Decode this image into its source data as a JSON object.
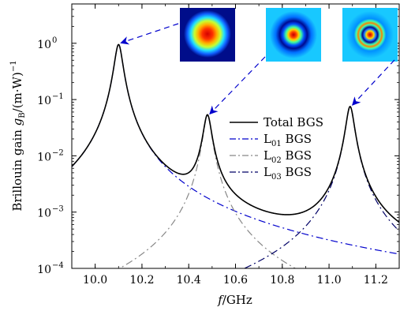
{
  "chart_data": {
    "type": "line",
    "title": "",
    "xlabel": "f/GHz",
    "ylabel": "Brillouin gain gB/(m·W)−1",
    "xlim": [
      9.9,
      11.3
    ],
    "ylim": [
      0.0001,
      5
    ],
    "yscale": "log",
    "x_ticks": [
      "10.0",
      "10.2",
      "10.4",
      "10.6",
      "10.8",
      "11.0",
      "11.2"
    ],
    "y_ticks": [
      {
        "base": "10",
        "exp": "0"
      },
      {
        "base": "10",
        "exp": "−1"
      },
      {
        "base": "10",
        "exp": "−2"
      },
      {
        "base": "10",
        "exp": "−3"
      },
      {
        "base": "10",
        "exp": "−4"
      }
    ],
    "legend": {
      "position": "center-right",
      "entries": [
        {
          "text": "Total BGS",
          "style": "solid",
          "color": "#000000"
        },
        {
          "text": "L01 BGS",
          "base": "L",
          "sub": "01",
          "suffix": " BGS",
          "style": "dashdot",
          "color": "#0000cc"
        },
        {
          "text": "L02 BGS",
          "base": "L",
          "sub": "02",
          "suffix": " BGS",
          "style": "dashdot",
          "color": "#888888"
        },
        {
          "text": "L03 BGS",
          "base": "L",
          "sub": "03",
          "suffix": " BGS",
          "style": "dashdot",
          "color": "#000066"
        }
      ]
    },
    "series": [
      {
        "name": "Total BGS",
        "peaks": [
          {
            "center": 10.1,
            "height": 0.95,
            "fwhm": 0.033
          },
          {
            "center": 10.48,
            "height": 0.052,
            "fwhm": 0.033
          },
          {
            "center": 11.09,
            "height": 0.075,
            "fwhm": 0.033
          }
        ]
      },
      {
        "name": "L01 BGS",
        "peaks": [
          {
            "center": 10.1,
            "height": 0.95,
            "fwhm": 0.033
          }
        ]
      },
      {
        "name": "L02 BGS",
        "peaks": [
          {
            "center": 10.48,
            "height": 0.052,
            "fwhm": 0.033
          }
        ]
      },
      {
        "name": "L03 BGS",
        "peaks": [
          {
            "center": 11.09,
            "height": 0.075,
            "fwhm": 0.033
          }
        ]
      }
    ],
    "annotations": [
      {
        "text": "mode field profile L01",
        "points_to": {
          "x": 10.1,
          "y": 0.95
        },
        "color": "#0000cc"
      },
      {
        "text": "mode field profile L02",
        "points_to": {
          "x": 10.48,
          "y": 0.052
        },
        "color": "#0000cc"
      },
      {
        "text": "mode field profile L03",
        "points_to": {
          "x": 11.09,
          "y": 0.075
        },
        "color": "#0000cc"
      }
    ]
  }
}
